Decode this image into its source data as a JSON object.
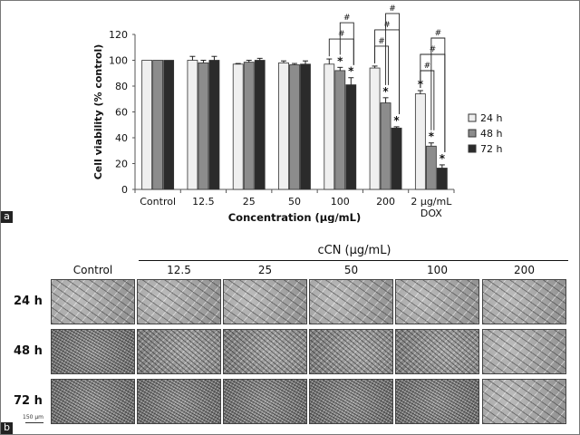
{
  "chart_data": {
    "type": "bar",
    "ylabel": "Cell viability (% control)",
    "xlabel": "Concentration (µg/mL)",
    "ylim": [
      0,
      120
    ],
    "yticks": [
      0,
      20,
      40,
      60,
      80,
      100,
      120
    ],
    "categories": [
      "Control",
      "12.5",
      "25",
      "50",
      "100",
      "200",
      "2 µg/mL DOX"
    ],
    "category_lines": [
      [
        "Control"
      ],
      [
        "12.5"
      ],
      [
        "25"
      ],
      [
        "50"
      ],
      [
        "100"
      ],
      [
        "200"
      ],
      [
        "2 µg/mL",
        "DOX"
      ]
    ],
    "legend_position": "right",
    "series": [
      {
        "name": "24 h",
        "color": "#efefef",
        "values": [
          100,
          100,
          97,
          98,
          97,
          94,
          74
        ],
        "errors": [
          0,
          3,
          0.5,
          1.5,
          4,
          1.5,
          2.5
        ]
      },
      {
        "name": "48 h",
        "color": "#8c8c8c",
        "values": [
          100,
          98,
          98.5,
          96.5,
          92,
          67,
          33.5
        ],
        "errors": [
          0,
          2,
          1.5,
          1,
          2.5,
          4,
          2.5
        ]
      },
      {
        "name": "72 h",
        "color": "#2b2b2b",
        "values": [
          100,
          100,
          100,
          97,
          81,
          47.5,
          16.5
        ],
        "errors": [
          0,
          3,
          1.5,
          2.5,
          5.5,
          1,
          2.5
        ]
      }
    ],
    "star_symbol": "*",
    "stars": [
      [
        4,
        1
      ],
      [
        4,
        2
      ],
      [
        5,
        1
      ],
      [
        5,
        2
      ],
      [
        6,
        0
      ],
      [
        6,
        1
      ],
      [
        6,
        2
      ]
    ],
    "hash_symbol": "#",
    "brackets": [
      {
        "group": 4,
        "from": 0,
        "to": 2,
        "level": 1
      },
      {
        "group": 4,
        "from": 1,
        "to": 2,
        "level": 2
      },
      {
        "group": 5,
        "from": 0,
        "to": 1,
        "level": 1
      },
      {
        "group": 5,
        "from": 0,
        "to": 2,
        "level": 2
      },
      {
        "group": 5,
        "from": 1,
        "to": 2,
        "level": 3
      },
      {
        "group": 6,
        "from": 0,
        "to": 1,
        "level": 1
      },
      {
        "group": 6,
        "from": 0,
        "to": 2,
        "level": 2
      },
      {
        "group": 6,
        "from": 1,
        "to": 2,
        "level": 3
      }
    ]
  },
  "panel_a_label": "a",
  "panel_b_label": "b",
  "micrographs": {
    "group_header": "cCN (µg/mL)",
    "columns": [
      "Control",
      "12.5",
      "25",
      "50",
      "100",
      "200"
    ],
    "rows": [
      "24 h",
      "48 h",
      "72 h"
    ],
    "density": [
      [
        "sparse",
        "sparse",
        "sparse",
        "sparse",
        "sparse",
        "sparse"
      ],
      [
        "dense",
        "medium",
        "medium",
        "medium",
        "medium",
        "sparse"
      ],
      [
        "dense",
        "dense",
        "dense",
        "dense",
        "dense",
        "sparse"
      ]
    ],
    "scale_bar": "150 µm"
  }
}
